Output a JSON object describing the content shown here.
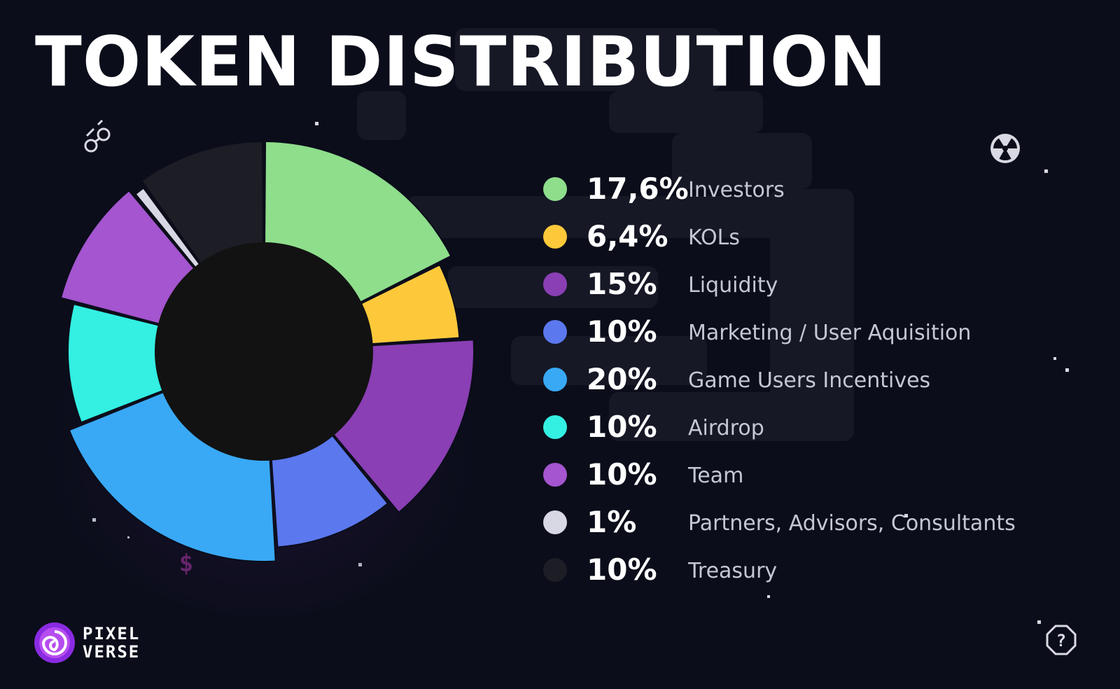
{
  "header": {
    "title": "TOKEN DISTRIBUTION"
  },
  "chart_data": {
    "type": "pie",
    "style": "donut",
    "legend": "right",
    "categories": [
      "Investors",
      "KOLs",
      "Liquidity",
      "Marketing / User Aquisition",
      "Game Users Incentives",
      "Airdrop",
      "Team",
      "Partners, Advisors, Consultants",
      "Treasury"
    ],
    "values": [
      17.6,
      6.4,
      15,
      10,
      20,
      10,
      10,
      1,
      10
    ],
    "value_labels": [
      "17,6%",
      "6,4%",
      "15%",
      "10%",
      "20%",
      "10%",
      "10%",
      "1%",
      "10%"
    ],
    "colors": [
      "#8ede8c",
      "#fdc93a",
      "#8a3fb4",
      "#5b78ee",
      "#39a9f6",
      "#33f0e2",
      "#a455cf",
      "#d8d8e4",
      "#1c1d25"
    ],
    "title": "",
    "xlabel": "",
    "ylabel": ""
  },
  "logo": {
    "text_line1": "PIXEL",
    "text_line2": "VERSE"
  },
  "icons": {
    "binoculars": "binoculars-icon",
    "radiation": "radiation-icon",
    "dollar": "dollar-icon",
    "help": "question-icon"
  }
}
